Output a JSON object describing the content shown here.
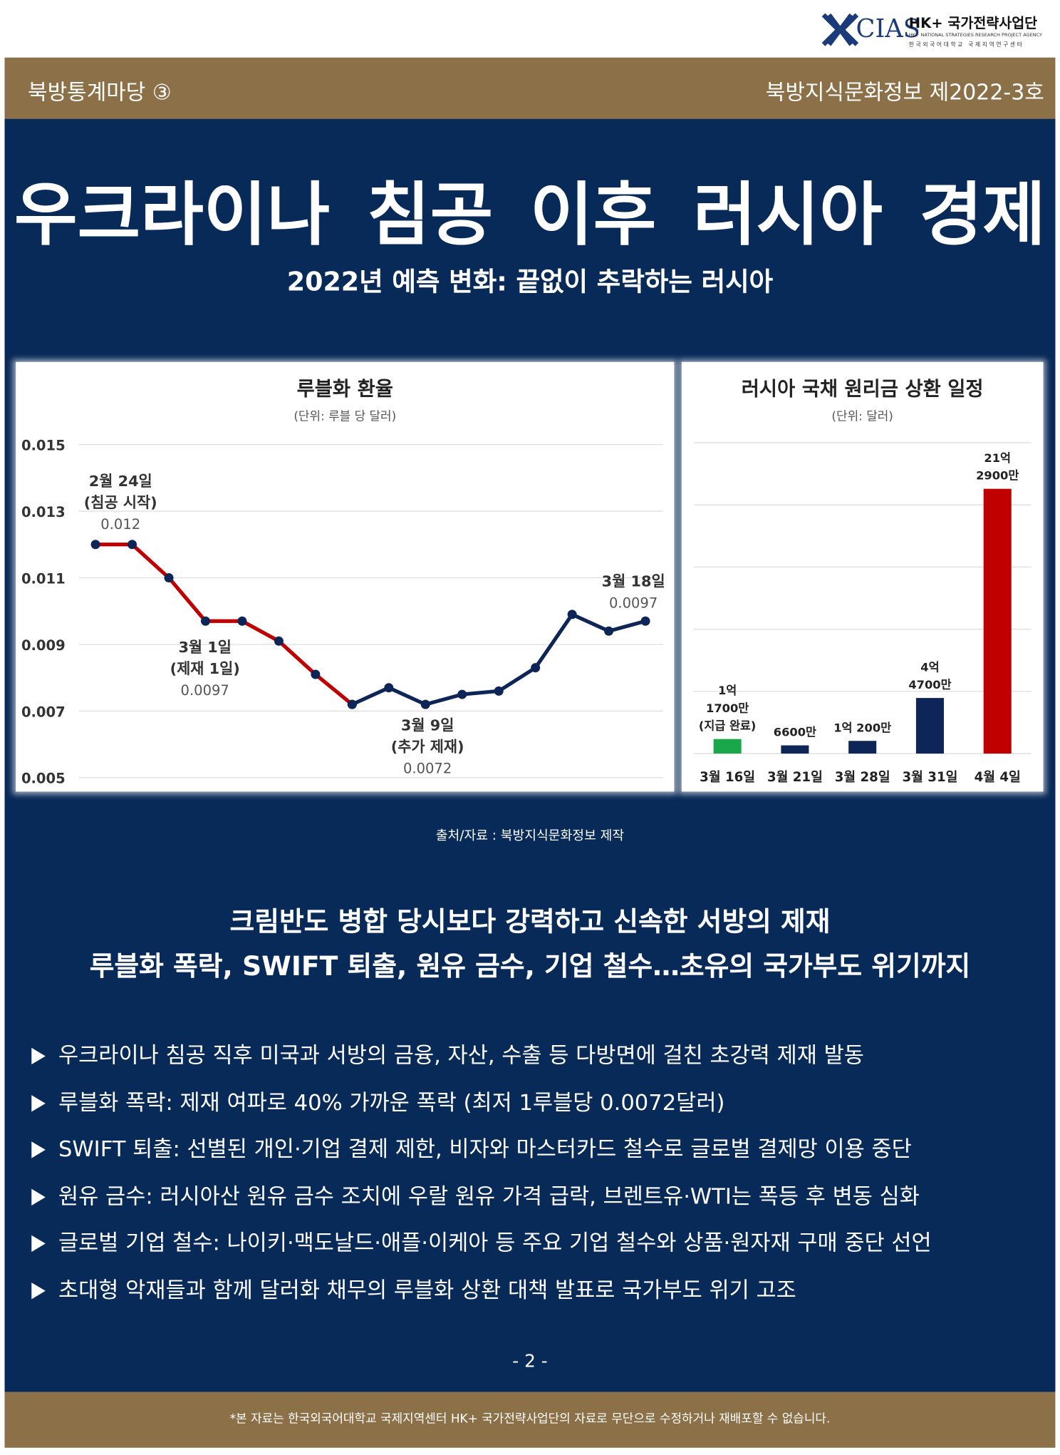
{
  "header": {
    "logo": "CIAS",
    "org": "HK+ 국가전략사업단",
    "org_en": "HK+ NATIONAL STRATEGIES RESEARCH PROJECT AGENCY",
    "org_ko": "한국외국어대학교 국제지역연구센터",
    "series_label": "북방통계마당 ③",
    "issue": "북방지식문화정보 제2022-3호"
  },
  "title": "우크라이나 침공 이후 러시아 경제",
  "subtitle": "2022년 예측 변화: 끝없이 추락하는 러시아",
  "chart_data": [
    {
      "type": "line",
      "title": "루블화 환율",
      "subtitle": "(단위: 루블 당 달러)",
      "ylim": [
        0.005,
        0.015
      ],
      "yticks": [
        0.005,
        0.007,
        0.009,
        0.011,
        0.013,
        0.015
      ],
      "grid": true,
      "marker_color": "#0d2557",
      "series": [
        {
          "color": "#c00000",
          "values": [
            0.012,
            0.012,
            0.011,
            0.0097,
            0.0097,
            0.0091,
            0.0081,
            0.0072,
            null,
            null,
            null,
            null,
            null,
            null,
            null,
            null
          ]
        },
        {
          "color": "#0d2557",
          "values": [
            null,
            null,
            null,
            null,
            null,
            null,
            null,
            0.0072,
            0.0077,
            0.0072,
            0.0075,
            0.0076,
            0.0083,
            0.0099,
            0.0094,
            0.0097
          ]
        }
      ],
      "annotations": [
        {
          "lines": [
            "2월 24일",
            "(침공 시작)"
          ],
          "value": 0.012
        },
        {
          "lines": [
            "3월 1일",
            "(제재 1일)"
          ],
          "value": 0.0097
        },
        {
          "lines": [
            "3월 9일",
            "(추가 제재)"
          ],
          "value": 0.0072
        },
        {
          "lines": [
            "3월 18일"
          ],
          "value": 0.0097
        }
      ]
    },
    {
      "type": "bar",
      "title": "러시아 국채 원리금 상환 일정",
      "subtitle": "(단위: 달러)",
      "categories": [
        "3월 16일",
        "3월 21일",
        "3월 28일",
        "3월 31일",
        "4월 4일"
      ],
      "values": [
        117000000,
        66000000,
        102000000,
        447000000,
        2129000000
      ],
      "value_labels": [
        [
          "1억",
          "1700만",
          "(지급 완료)"
        ],
        [
          "6600만"
        ],
        [
          "1억 200만"
        ],
        [
          "4억",
          "4700만"
        ],
        [
          "21억",
          "2900만"
        ]
      ],
      "colors": [
        "#1aa64a",
        "#0d2557",
        "#0d2557",
        "#0d2557",
        "#c00000"
      ],
      "ylim": [
        0,
        2500000000
      ],
      "yticks": [
        0,
        500000000,
        1000000000,
        1500000000,
        2000000000,
        2500000000
      ],
      "grid": true
    }
  ],
  "source": "출처/자료 : 북방지식문화정보 제작",
  "headline": [
    "크림반도 병합 당시보다 강력하고 신속한 서방의 제재",
    "루블화 폭락, SWIFT 퇴출, 원유 금수, 기업 철수…초유의 국가부도 위기까지"
  ],
  "bullets": [
    "우크라이나 침공 직후 미국과 서방의 금융, 자산, 수출 등 다방면에 걸친 초강력 제재 발동",
    "루블화 폭락: 제재 여파로 40% 가까운 폭락 (최저 1루블당 0.0072달러)",
    "SWIFT 퇴출: 선별된 개인·기업 결제 제한, 비자와 마스터카드 철수로 글로벌 결제망 이용 중단",
    "원유 금수: 러시아산 원유 금수 조치에 우랄 원유 가격 급락, 브렌트유·WTI는 폭등 후 변동 심화",
    "글로벌 기업 철수: 나이키·맥도날드·애플·이케아 등 주요 기업 철수와 상품·원자재 구매 중단 선언",
    "초대형 악재들과 함께 달러화 채무의 루블화 상환 대책 발표로 국가부도 위기 고조"
  ],
  "page_number": "- 2 -",
  "footer": "*본 자료는 한국외국어대학교 국제지역센터 HK+ 국가전략사업단의 자료로 무단으로 수정하거나 재배포할 수 없습니다."
}
